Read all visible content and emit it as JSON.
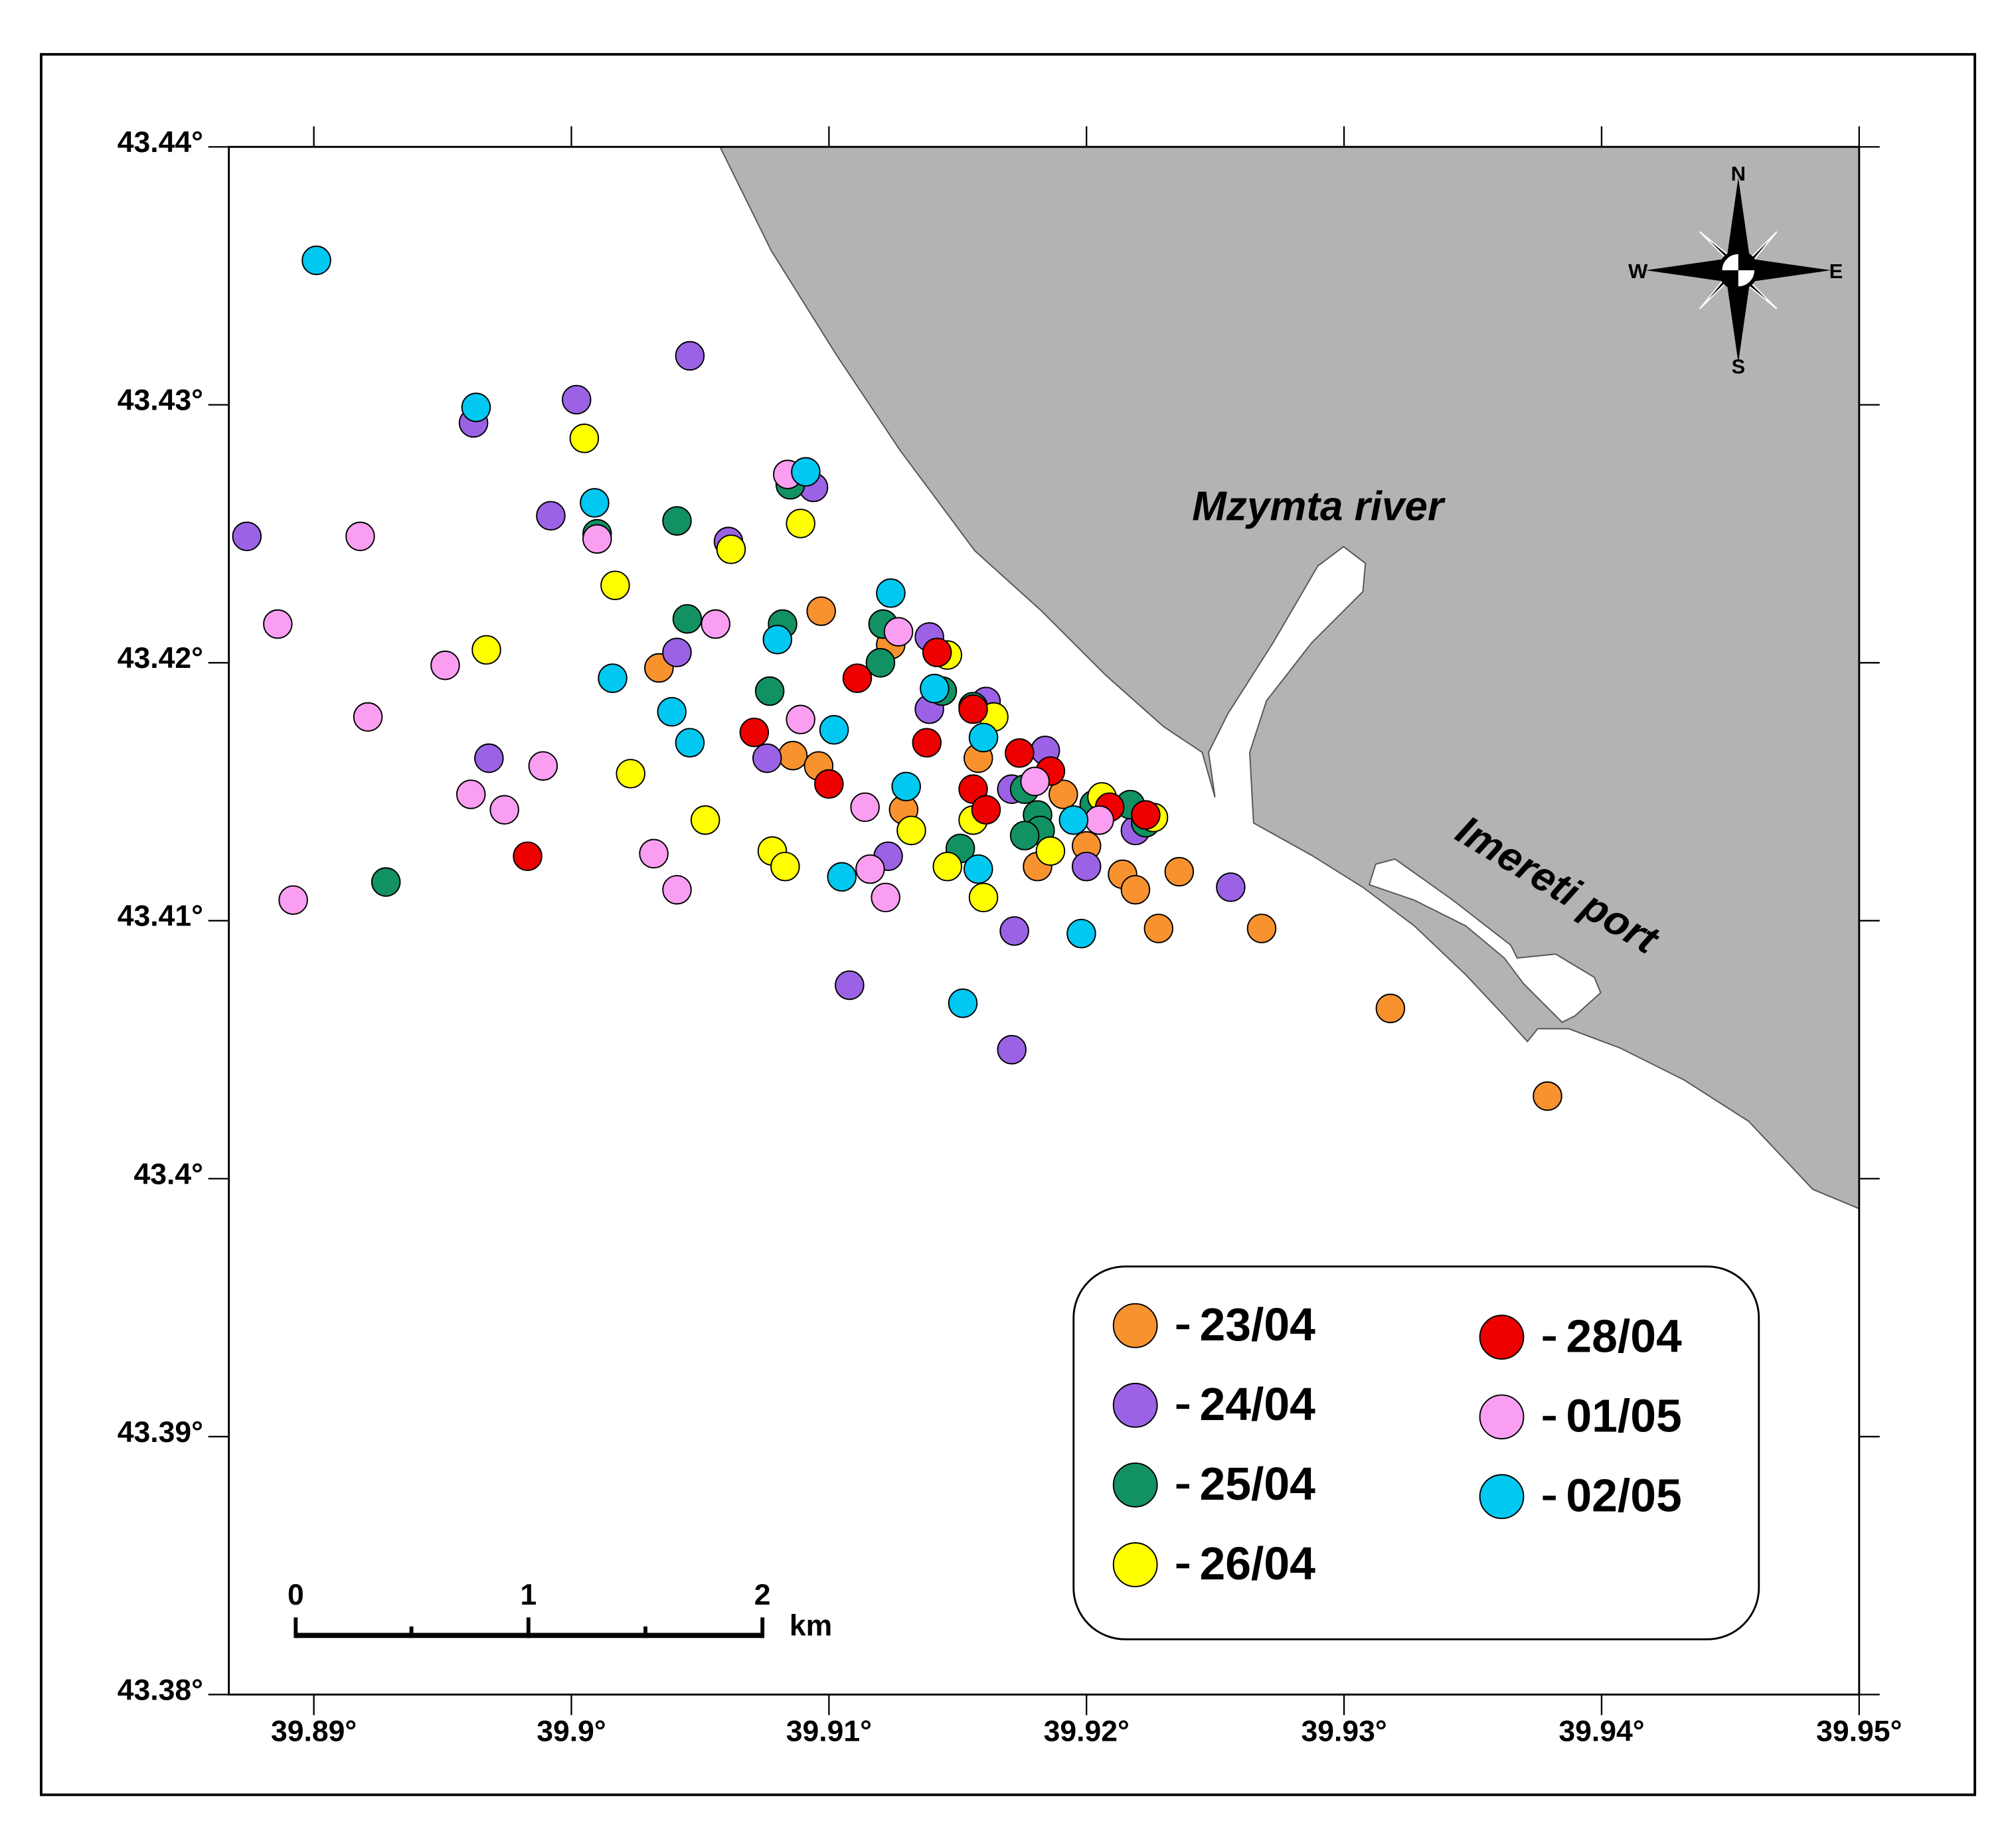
{
  "chart_data": {
    "type": "scatter",
    "xlim": [
      39.8867,
      39.95
    ],
    "ylim": [
      43.38,
      43.44
    ],
    "xticks": [
      {
        "value": 39.89,
        "label": "39.89°"
      },
      {
        "value": 39.9,
        "label": "39.9°"
      },
      {
        "value": 39.91,
        "label": "39.91°"
      },
      {
        "value": 39.92,
        "label": "39.92°"
      },
      {
        "value": 39.93,
        "label": "39.93°"
      },
      {
        "value": 39.94,
        "label": "39.94°"
      },
      {
        "value": 39.95,
        "label": "39.95°"
      }
    ],
    "yticks": [
      {
        "value": 43.38,
        "label": "43.38°"
      },
      {
        "value": 43.39,
        "label": "43.39°"
      },
      {
        "value": 43.4,
        "label": "43.4°"
      },
      {
        "value": 43.41,
        "label": "43.41°"
      },
      {
        "value": 43.42,
        "label": "43.42°"
      },
      {
        "value": 43.43,
        "label": "43.43°"
      },
      {
        "value": 43.44,
        "label": "43.44°"
      }
    ],
    "legend": "lower right",
    "annotations": [
      "Mzymta river",
      "Imereti port"
    ],
    "compass": [
      "N",
      "S",
      "W",
      "E"
    ],
    "scale_bar": {
      "labels": [
        0,
        1,
        2
      ],
      "unit": "km"
    },
    "series": [
      {
        "name": "23/04",
        "color": "#f7922f",
        "x": [
          39.9097,
          39.9034,
          39.9124,
          39.9086,
          39.9096,
          39.9129,
          39.9158,
          39.9191,
          39.92,
          39.9181,
          39.9214,
          39.9219,
          39.9236,
          39.9228,
          39.9268,
          39.9318,
          39.9379
        ],
        "values": [
          43.422,
          43.4198,
          43.4207,
          43.4164,
          43.416,
          43.4143,
          43.4163,
          43.4149,
          43.4129,
          43.4121,
          43.4118,
          43.4112,
          43.4119,
          43.4097,
          43.4097,
          43.4066,
          43.4032
        ]
      },
      {
        "name": "24/04",
        "color": "#9b62e6",
        "x": [
          39.8874,
          39.9046,
          39.9002,
          39.8962,
          39.8992,
          39.9061,
          39.9094,
          39.9041,
          39.8968,
          39.9076,
          39.9139,
          39.9139,
          39.9161,
          39.9184,
          39.9171,
          39.9123,
          39.92,
          39.9219,
          39.9256,
          39.9172,
          39.9108,
          39.9171
        ],
        "values": [
          43.4249,
          43.4319,
          43.4302,
          43.4293,
          43.4257,
          43.4247,
          43.4268,
          43.4204,
          43.4163,
          43.4163,
          43.421,
          43.4182,
          43.4185,
          43.4166,
          43.4151,
          43.4125,
          43.4121,
          43.4135,
          43.4113,
          43.4096,
          43.4075,
          43.405
        ]
      },
      {
        "name": "25/04",
        "color": "#129163",
        "x": [
          39.8928,
          39.901,
          39.9041,
          39.9045,
          39.9085,
          39.9082,
          39.9077,
          39.9121,
          39.912,
          39.9144,
          39.9156,
          39.9176,
          39.9181,
          39.9182,
          39.9176,
          39.9151,
          39.9203,
          39.9217,
          39.9223
        ],
        "values": [
          43.4115,
          43.425,
          43.4255,
          43.4217,
          43.4269,
          43.4215,
          43.4189,
          43.4215,
          43.42,
          43.4189,
          43.4183,
          43.4151,
          43.4141,
          43.4135,
          43.4133,
          43.4128,
          43.4145,
          43.4145,
          43.4138
        ]
      },
      {
        "name": "26/04",
        "color": "#ffff00",
        "x": [
          39.9005,
          39.9089,
          39.9062,
          39.9017,
          39.8967,
          39.9023,
          39.9052,
          39.9078,
          39.9083,
          39.9132,
          39.9146,
          39.9164,
          39.9156,
          39.9146,
          39.916,
          39.9186,
          39.9206,
          39.9226
        ],
        "values": [
          43.4287,
          43.4254,
          43.4244,
          43.423,
          43.4205,
          43.4157,
          43.4139,
          43.4127,
          43.4121,
          43.4135,
          43.4203,
          43.4179,
          43.4139,
          43.4121,
          43.4109,
          43.4127,
          43.4148,
          43.414
        ]
      },
      {
        "name": "28/04",
        "color": "#ee0000",
        "x": [
          39.8983,
          39.9071,
          39.91,
          39.9111,
          39.9142,
          39.9138,
          39.9156,
          39.9174,
          39.9186,
          39.9156,
          39.9161,
          39.9209,
          39.9223
        ],
        "values": [
          43.4125,
          43.4173,
          43.4153,
          43.4194,
          43.4204,
          43.4169,
          43.4182,
          43.4165,
          43.4158,
          43.4151,
          43.4143,
          43.4144,
          43.4141
        ]
      },
      {
        "name": "01/05",
        "color": "#f99ef0",
        "x": [
          39.8886,
          39.8918,
          39.8921,
          39.8951,
          39.8892,
          39.8961,
          39.8974,
          39.8989,
          39.901,
          39.9032,
          39.9041,
          39.9056,
          39.9084,
          39.9089,
          39.9114,
          39.9116,
          39.9122,
          39.9127,
          39.918,
          39.9205
        ],
        "values": [
          43.4215,
          43.4249,
          43.4179,
          43.4199,
          43.4108,
          43.4149,
          43.4143,
          43.416,
          43.4248,
          43.4126,
          43.4112,
          43.4215,
          43.4273,
          43.4178,
          43.4144,
          43.412,
          43.4109,
          43.4212,
          43.4154,
          43.4139
        ]
      },
      {
        "name": "02/05",
        "color": "#00c8f0",
        "x": [
          39.8901,
          39.8963,
          39.9009,
          39.9016,
          39.9039,
          39.9046,
          39.9091,
          39.908,
          39.9102,
          39.9124,
          39.913,
          39.9105,
          39.9141,
          39.916,
          39.9158,
          39.9152,
          39.9195,
          39.9198
        ],
        "values": [
          43.4356,
          43.4299,
          43.4262,
          43.4194,
          43.4181,
          43.4169,
          43.4274,
          43.4209,
          43.4174,
          43.4227,
          43.4152,
          43.4117,
          43.419,
          43.4171,
          43.412,
          43.4068,
          43.4139,
          43.4095
        ]
      }
    ]
  }
}
